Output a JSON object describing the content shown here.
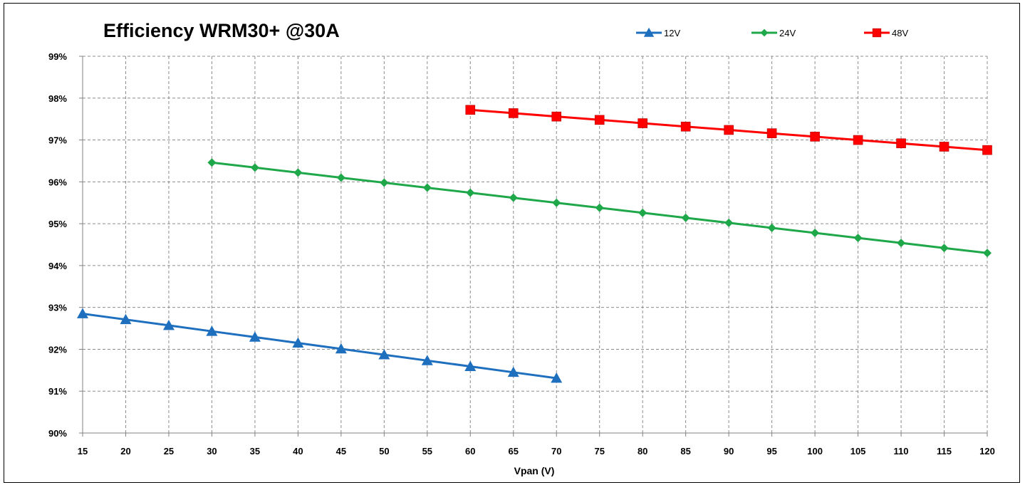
{
  "chart_data": {
    "type": "line",
    "title": "Efficiency WRM30+  @30A",
    "xlabel": "Vpan (V)",
    "ylabel": "",
    "xlim": [
      15,
      120
    ],
    "ylim": [
      90,
      99
    ],
    "x_ticks": [
      "15",
      "20",
      "25",
      "30",
      "35",
      "40",
      "45",
      "50",
      "55",
      "60",
      "65",
      "70",
      "75",
      "80",
      "85",
      "90",
      "95",
      "100",
      "105",
      "110",
      "115",
      "120"
    ],
    "y_ticks": [
      "90%",
      "91%",
      "92%",
      "93%",
      "94%",
      "95%",
      "96%",
      "97%",
      "98%",
      "99%"
    ],
    "grid": true,
    "legend_position": "top-right",
    "series": [
      {
        "name": "12V",
        "color": "#1f6fbf",
        "marker": "triangle",
        "points": [
          [
            15,
            92.85
          ],
          [
            20,
            92.71
          ],
          [
            25,
            92.57
          ],
          [
            30,
            92.43
          ],
          [
            35,
            92.29
          ],
          [
            40,
            92.15
          ],
          [
            45,
            92.01
          ],
          [
            50,
            91.87
          ],
          [
            55,
            91.73
          ],
          [
            60,
            91.59
          ],
          [
            65,
            91.45
          ],
          [
            70,
            91.31
          ]
        ]
      },
      {
        "name": "24V",
        "color": "#1fa84a",
        "marker": "diamond",
        "points": [
          [
            30,
            96.46
          ],
          [
            35,
            96.34
          ],
          [
            40,
            96.22
          ],
          [
            45,
            96.1
          ],
          [
            50,
            95.98
          ],
          [
            55,
            95.86
          ],
          [
            60,
            95.74
          ],
          [
            65,
            95.62
          ],
          [
            70,
            95.5
          ],
          [
            75,
            95.38
          ],
          [
            80,
            95.26
          ],
          [
            85,
            95.14
          ],
          [
            90,
            95.02
          ],
          [
            95,
            94.9
          ],
          [
            100,
            94.78
          ],
          [
            105,
            94.66
          ],
          [
            110,
            94.54
          ],
          [
            115,
            94.42
          ],
          [
            120,
            94.3
          ]
        ]
      },
      {
        "name": "48V",
        "color": "#ff0000",
        "marker": "square",
        "points": [
          [
            60,
            97.72
          ],
          [
            65,
            97.64
          ],
          [
            70,
            97.56
          ],
          [
            75,
            97.48
          ],
          [
            80,
            97.4
          ],
          [
            85,
            97.32
          ],
          [
            90,
            97.24
          ],
          [
            95,
            97.16
          ],
          [
            100,
            97.08
          ],
          [
            105,
            97.0
          ],
          [
            110,
            96.92
          ],
          [
            115,
            96.84
          ],
          [
            120,
            96.76
          ]
        ]
      }
    ]
  }
}
